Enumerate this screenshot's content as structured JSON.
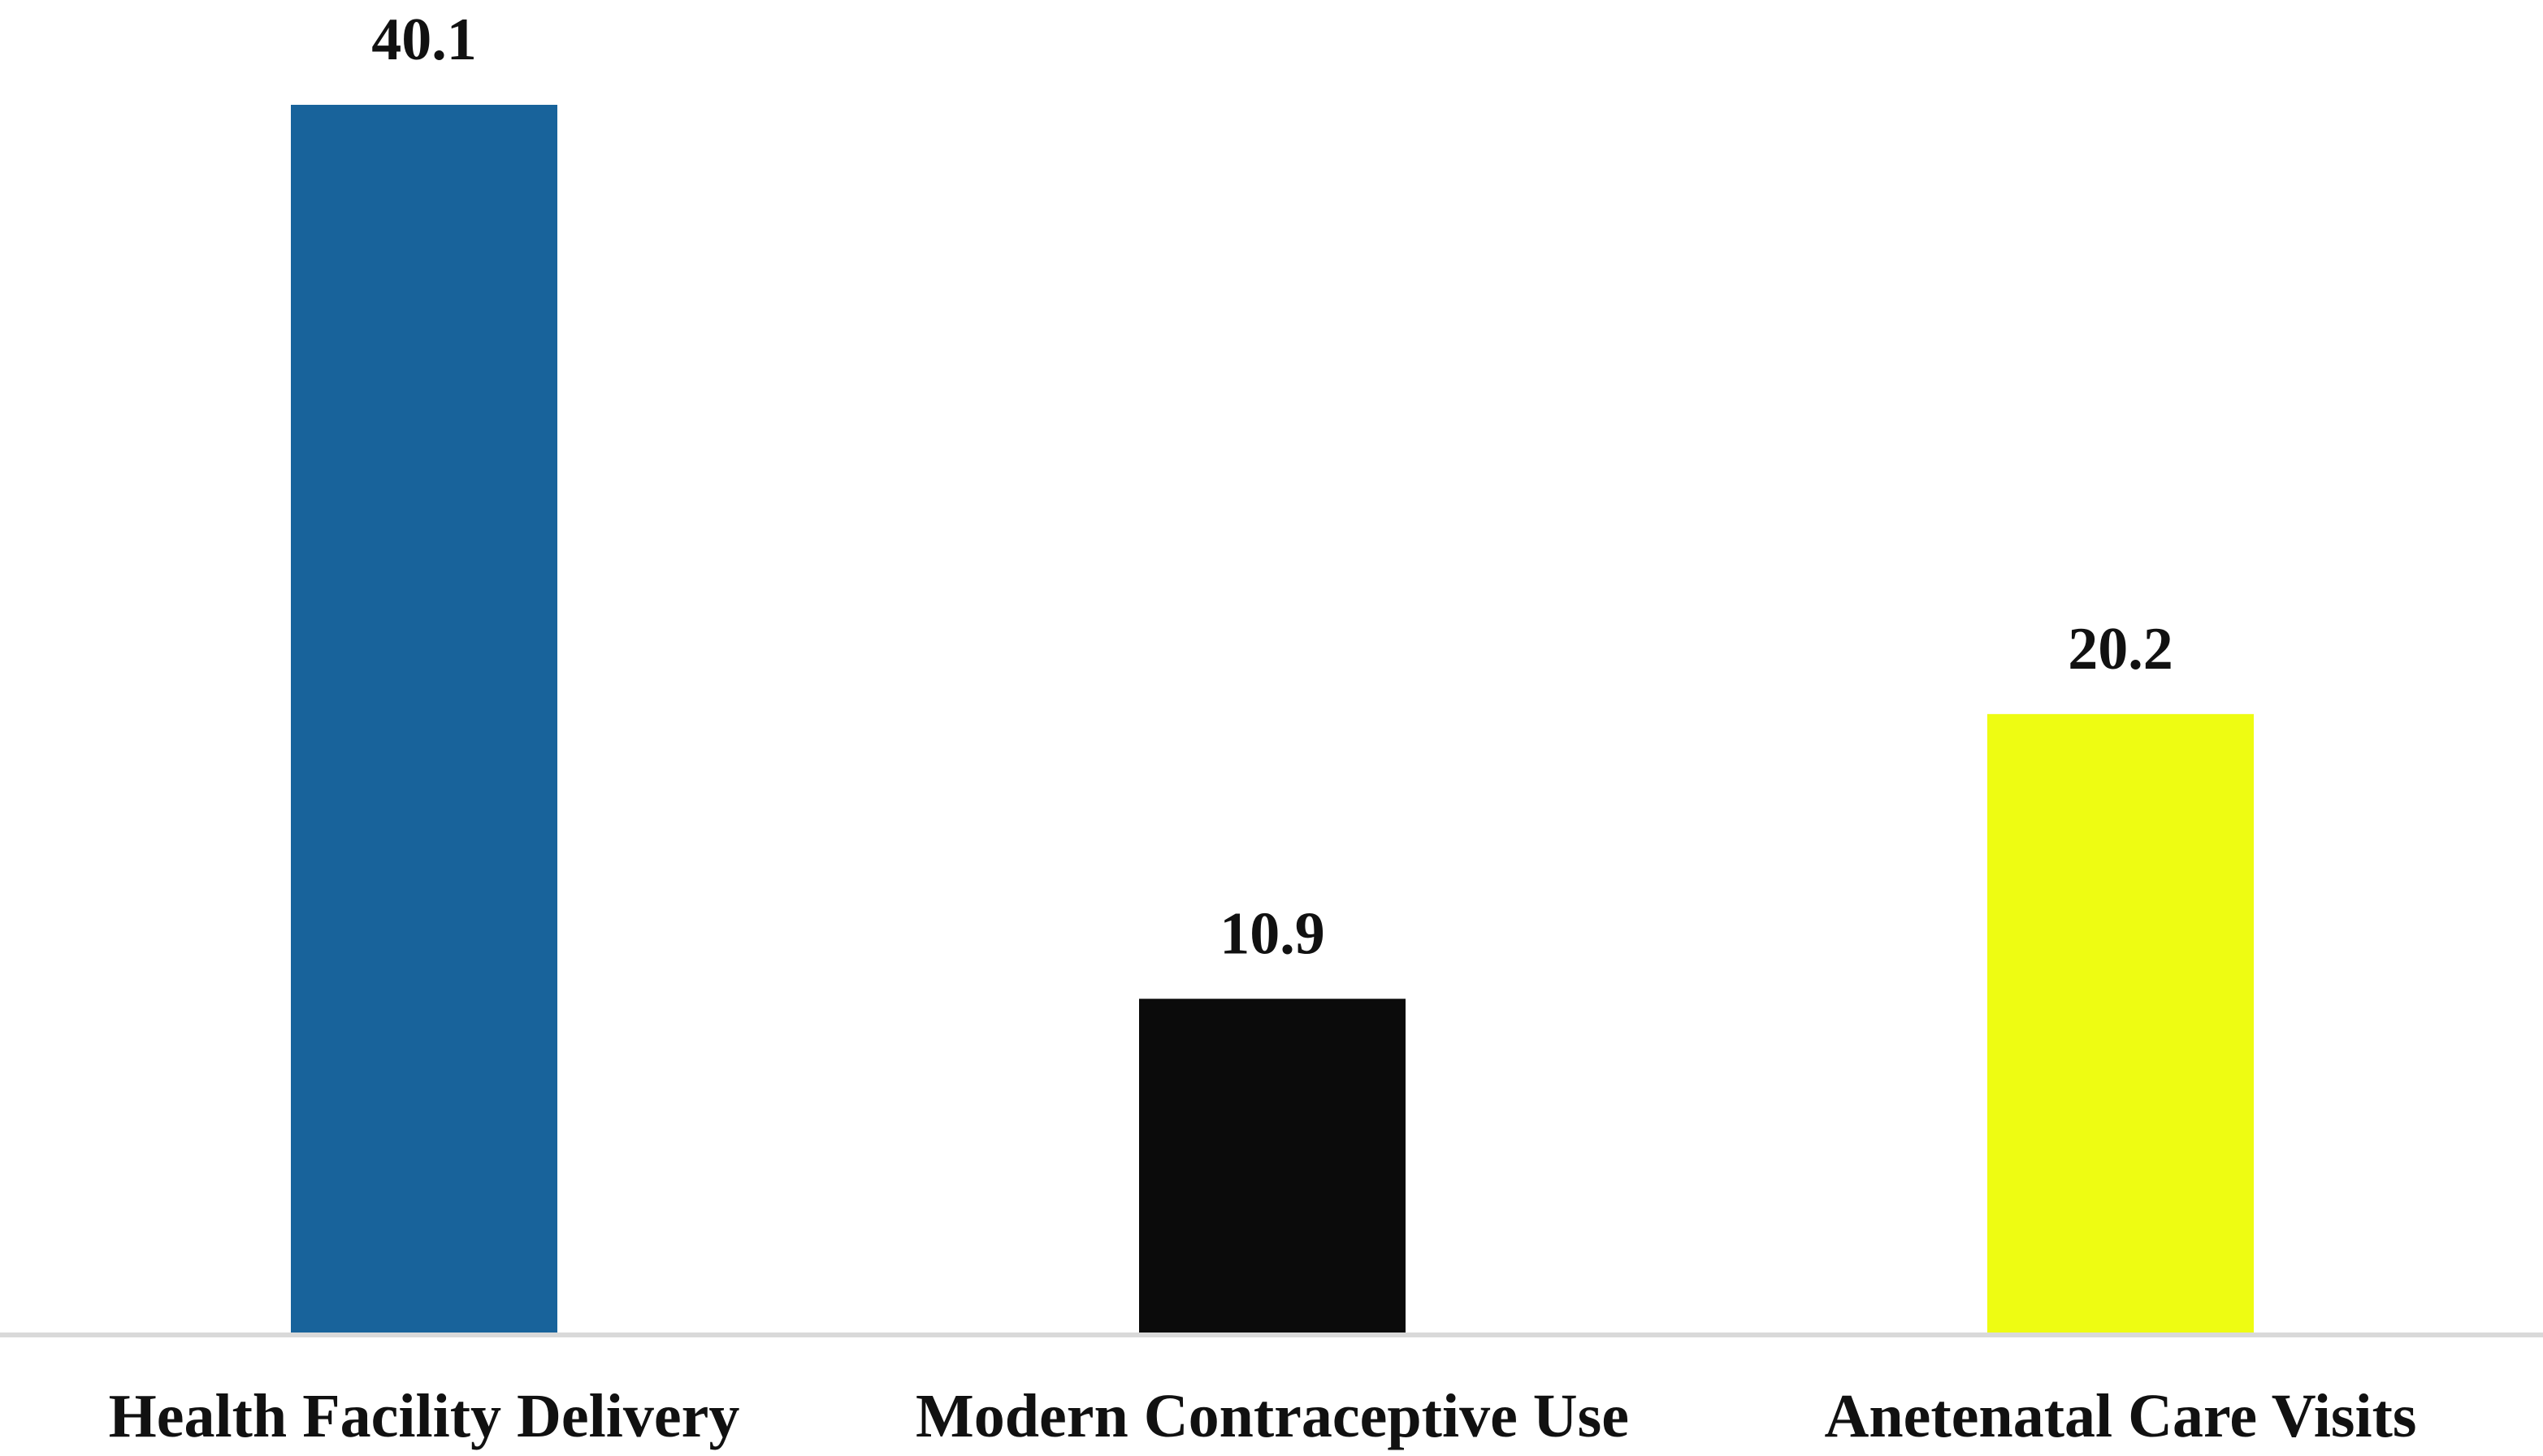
{
  "chart_data": {
    "type": "bar",
    "title": "",
    "xlabel": "",
    "ylabel": "",
    "categories": [
      "Health Facility Delivery",
      "Modern Contraceptive Use",
      "Anetenatal Care Visits"
    ],
    "values": [
      40.1,
      10.9,
      20.2
    ],
    "value_labels": [
      "40.1",
      "10.9",
      "20.2"
    ],
    "ylim": [
      0,
      40.1
    ],
    "grid": false,
    "legend": "none",
    "colors": [
      "#18639b",
      "#0b0b0b",
      "#eefc12"
    ],
    "axis_color": "#d9d9d9"
  }
}
